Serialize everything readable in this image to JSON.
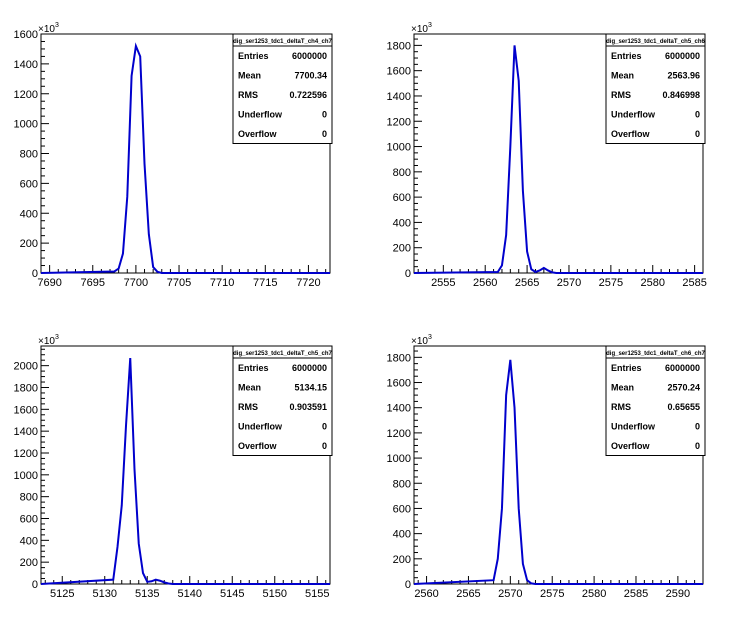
{
  "chart_data": [
    {
      "type": "histogram",
      "title": "dig_ser1253_tdc1_deltaT_ch4_ch7",
      "y_exponent": "3",
      "xlim": [
        7689,
        7722.5
      ],
      "ylim": [
        0,
        1600
      ],
      "xticks": [
        7690,
        7695,
        7700,
        7705,
        7710,
        7715,
        7720
      ],
      "yticks": [
        0,
        200,
        400,
        600,
        800,
        1000,
        1200,
        1400,
        1600
      ],
      "bin_width": 0.5,
      "bins": [
        {
          "x": 7697.5,
          "y": 10
        },
        {
          "x": 7698.0,
          "y": 30
        },
        {
          "x": 7698.5,
          "y": 130
        },
        {
          "x": 7699.0,
          "y": 510
        },
        {
          "x": 7699.5,
          "y": 1320
        },
        {
          "x": 7700.0,
          "y": 1520
        },
        {
          "x": 7700.5,
          "y": 1450
        },
        {
          "x": 7701.0,
          "y": 730
        },
        {
          "x": 7701.5,
          "y": 260
        },
        {
          "x": 7702.0,
          "y": 40
        },
        {
          "x": 7702.5,
          "y": 8
        }
      ],
      "stats": [
        {
          "label": "Entries",
          "value": "6000000"
        },
        {
          "label": "Mean",
          "value": "7700.34"
        },
        {
          "label": "RMS",
          "value": "0.722596"
        },
        {
          "label": "Underflow",
          "value": "0"
        },
        {
          "label": "Overflow",
          "value": "0"
        }
      ]
    },
    {
      "type": "histogram",
      "title": "dig_ser1253_tdc1_deltaT_ch5_ch6",
      "y_exponent": "3",
      "xlim": [
        2551.5,
        2586
      ],
      "ylim": [
        0,
        1890
      ],
      "xticks": [
        2555,
        2560,
        2565,
        2570,
        2575,
        2580,
        2585
      ],
      "yticks": [
        0,
        200,
        400,
        600,
        800,
        1000,
        1200,
        1400,
        1600,
        1800
      ],
      "bin_width": 0.5,
      "bins": [
        {
          "x": 2561.5,
          "y": 8
        },
        {
          "x": 2562.0,
          "y": 60
        },
        {
          "x": 2562.5,
          "y": 300
        },
        {
          "x": 2563.0,
          "y": 1000
        },
        {
          "x": 2563.5,
          "y": 1800
        },
        {
          "x": 2564.0,
          "y": 1520
        },
        {
          "x": 2564.5,
          "y": 650
        },
        {
          "x": 2565.0,
          "y": 170
        },
        {
          "x": 2565.5,
          "y": 30
        },
        {
          "x": 2566.0,
          "y": 8
        },
        {
          "x": 2566.5,
          "y": 20
        },
        {
          "x": 2567.0,
          "y": 40
        },
        {
          "x": 2567.5,
          "y": 20
        },
        {
          "x": 2568.0,
          "y": 5
        }
      ],
      "stats": [
        {
          "label": "Entries",
          "value": "6000000"
        },
        {
          "label": "Mean",
          "value": "2563.96"
        },
        {
          "label": "RMS",
          "value": "0.846998"
        },
        {
          "label": "Underflow",
          "value": "0"
        },
        {
          "label": "Overflow",
          "value": "0"
        }
      ]
    },
    {
      "type": "histogram",
      "title": "dig_ser1253_tdc1_deltaT_ch5_ch7",
      "y_exponent": "3",
      "xlim": [
        5122.5,
        5156.5
      ],
      "ylim": [
        0,
        2180
      ],
      "xticks": [
        5125,
        5130,
        5135,
        5140,
        5145,
        5150,
        5155
      ],
      "yticks": [
        0,
        200,
        400,
        600,
        800,
        1000,
        1200,
        1400,
        1600,
        1800,
        2000
      ],
      "bin_width": 0.5,
      "bins": [
        {
          "x": 5131.0,
          "y": 40
        },
        {
          "x": 5131.5,
          "y": 340
        },
        {
          "x": 5132.0,
          "y": 720
        },
        {
          "x": 5132.5,
          "y": 1450
        },
        {
          "x": 5133.0,
          "y": 2070
        },
        {
          "x": 5133.5,
          "y": 1050
        },
        {
          "x": 5134.0,
          "y": 370
        },
        {
          "x": 5134.5,
          "y": 100
        },
        {
          "x": 5135.0,
          "y": 20
        },
        {
          "x": 5135.5,
          "y": 25
        },
        {
          "x": 5136.0,
          "y": 40
        },
        {
          "x": 5136.5,
          "y": 30
        },
        {
          "x": 5137.0,
          "y": 15
        },
        {
          "x": 5137.5,
          "y": 5
        }
      ],
      "stats": [
        {
          "label": "Entries",
          "value": "6000000"
        },
        {
          "label": "Mean",
          "value": "5134.15"
        },
        {
          "label": "RMS",
          "value": "0.903591"
        },
        {
          "label": "Underflow",
          "value": "0"
        },
        {
          "label": "Overflow",
          "value": "0"
        }
      ]
    },
    {
      "type": "histogram",
      "title": "dig_ser1253_tdc1_deltaT_ch6_ch7",
      "y_exponent": "3",
      "xlim": [
        2558.5,
        2593
      ],
      "ylim": [
        0,
        1890
      ],
      "xticks": [
        2560,
        2565,
        2570,
        2575,
        2580,
        2585,
        2590
      ],
      "yticks": [
        0,
        200,
        400,
        600,
        800,
        1000,
        1200,
        1400,
        1600,
        1800
      ],
      "bin_width": 0.5,
      "bins": [
        {
          "x": 2568.0,
          "y": 30
        },
        {
          "x": 2568.5,
          "y": 200
        },
        {
          "x": 2569.0,
          "y": 600
        },
        {
          "x": 2569.5,
          "y": 1500
        },
        {
          "x": 2570.0,
          "y": 1780
        },
        {
          "x": 2570.5,
          "y": 1400
        },
        {
          "x": 2571.0,
          "y": 600
        },
        {
          "x": 2571.5,
          "y": 160
        },
        {
          "x": 2572.0,
          "y": 30
        },
        {
          "x": 2572.5,
          "y": 5
        }
      ],
      "stats": [
        {
          "label": "Entries",
          "value": "6000000"
        },
        {
          "label": "Mean",
          "value": "2570.24"
        },
        {
          "label": "RMS",
          "value": "0.65655"
        },
        {
          "label": "Underflow",
          "value": "0"
        },
        {
          "label": "Overflow",
          "value": "0"
        }
      ]
    }
  ],
  "colors": {
    "line": "#0000cc",
    "frame": "#000000",
    "background": "#ffffff"
  }
}
